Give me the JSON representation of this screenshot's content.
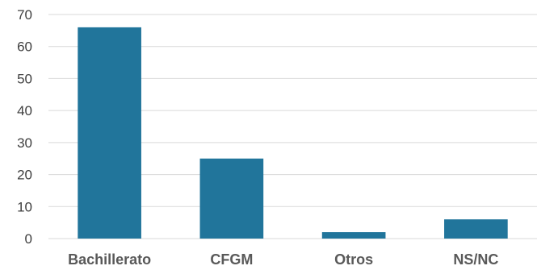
{
  "chart_data": {
    "type": "bar",
    "title": "",
    "xlabel": "",
    "ylabel": "",
    "categories": [
      "Bachillerato",
      "CFGM",
      "Otros",
      "NS/NC"
    ],
    "values": [
      66,
      25,
      2,
      6
    ],
    "ylim": [
      0,
      70
    ],
    "yticks": [
      "0",
      "10",
      "20",
      "30",
      "40",
      "50",
      "60",
      "70"
    ],
    "grid": true,
    "legend": "none",
    "bar_color": "#21759b",
    "grid_color": "#d9d9d9"
  }
}
